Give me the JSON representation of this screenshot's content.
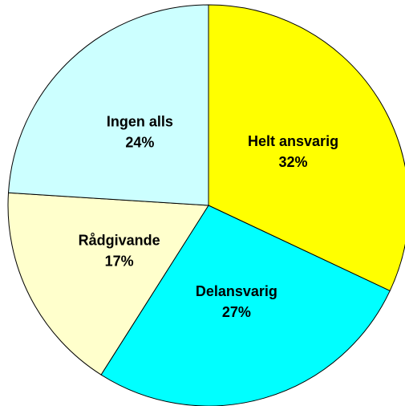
{
  "chart_data": {
    "type": "pie",
    "categories": [
      "Helt ansvarig",
      "Delansvarig",
      "Rådgivande",
      "Ingen alls"
    ],
    "values": [
      32,
      27,
      17,
      24
    ],
    "value_labels": [
      "32%",
      "27%",
      "17%",
      "24%"
    ],
    "colors": [
      "#ffff00",
      "#00ffff",
      "#ffffcc",
      "#ccffff"
    ]
  }
}
